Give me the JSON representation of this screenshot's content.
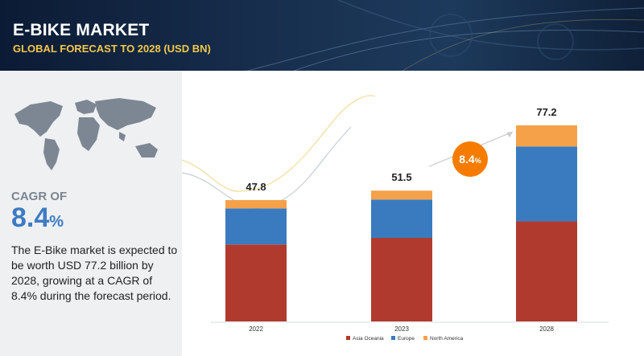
{
  "header": {
    "title": "E-BIKE MARKET",
    "subtitle": "GLOBAL FORECAST TO 2028 (USD BN)"
  },
  "summary": {
    "cagr_label": "CAGR OF",
    "cagr_number": "8.4",
    "cagr_unit": "%",
    "description": "The E-Bike market is expected to be worth USD 77.2 billion by 2028, growing at a CAGR of 8.4% during the forecast period."
  },
  "colors": {
    "asia_oceania": "#b03a2e",
    "europe": "#3a7bbf",
    "north_america": "#f5a14a",
    "cagr_bubble": "#f57c00",
    "accent_blue": "#3d7bc4",
    "banner_subtitle": "#f2c84a"
  },
  "chart_data": {
    "type": "bar",
    "stacked": true,
    "categories": [
      "2022",
      "2023",
      "2028"
    ],
    "series": [
      {
        "name": "Asia Oceania",
        "values": [
          30.3,
          32.9,
          39.4
        ]
      },
      {
        "name": "Europe",
        "values": [
          14.2,
          15.1,
          29.5
        ]
      },
      {
        "name": "North America",
        "values": [
          3.3,
          3.5,
          8.3
        ]
      }
    ],
    "totals": [
      "47.8",
      "51.5",
      "77.2"
    ],
    "cagr_bubble": {
      "number": "8.4",
      "unit": "%"
    },
    "ylim": [
      0,
      80
    ],
    "grid": false,
    "legend_position": "bottom"
  }
}
